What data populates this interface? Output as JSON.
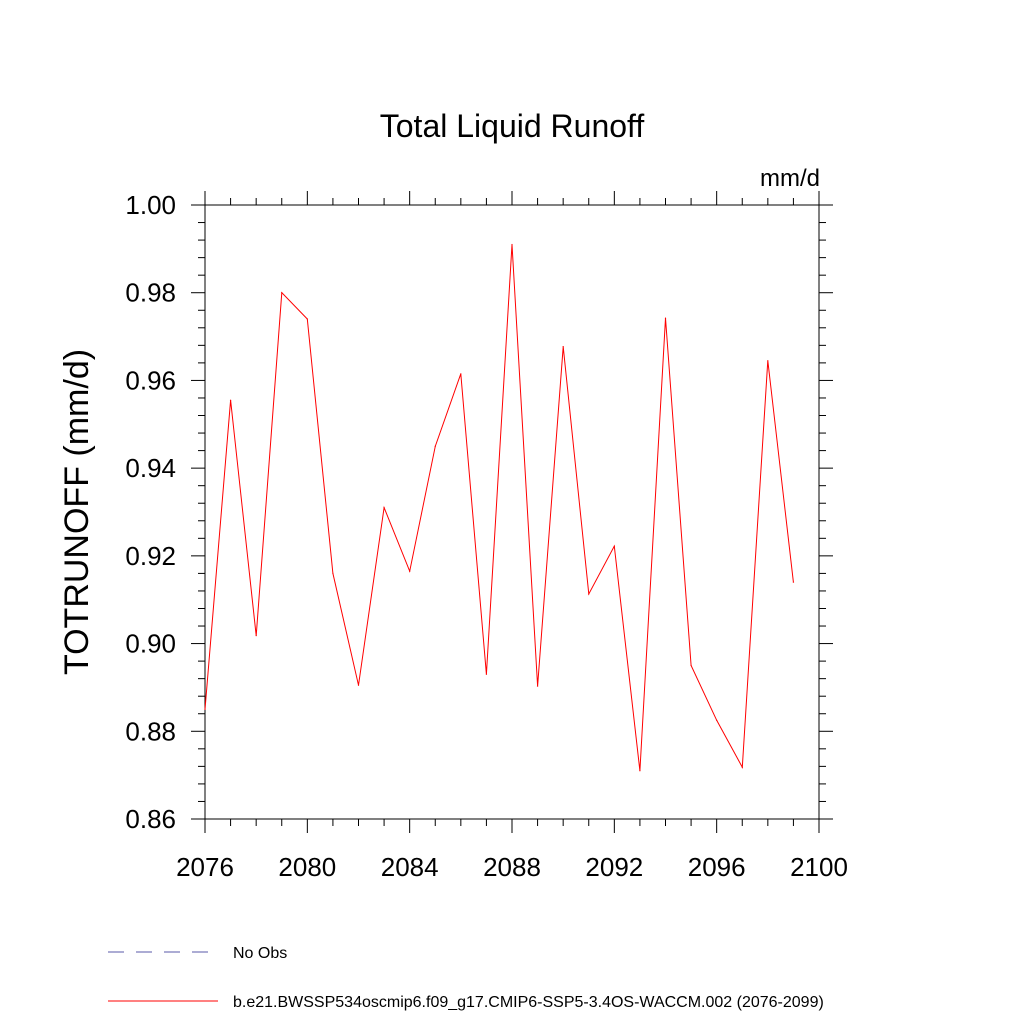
{
  "chart_data": {
    "type": "line",
    "title": "Total Liquid Runoff",
    "units_label": "mm/d",
    "ylabel": "TOTRUNOFF  (mm/d)",
    "xlabel": "",
    "xlim": [
      2076,
      2100
    ],
    "ylim": [
      0.86,
      1.0
    ],
    "x_ticks": [
      "2076",
      "2080",
      "2084",
      "2088",
      "2092",
      "2096",
      "2100"
    ],
    "y_ticks": [
      "0.86",
      "0.88",
      "0.90",
      "0.92",
      "0.94",
      "0.96",
      "0.98",
      "1.00"
    ],
    "series": [
      {
        "name": "b.e21.BWSSP534oscmip6.f09_g17.CMIP6-SSP5-3.4OS-WACCM.002 (2076-2099)",
        "color": "#ff0000",
        "style": "solid",
        "x": [
          2076,
          2077,
          2078,
          2079,
          2080,
          2081,
          2082,
          2083,
          2084,
          2085,
          2086,
          2087,
          2088,
          2089,
          2090,
          2091,
          2092,
          2093,
          2094,
          2095,
          2096,
          2097,
          2098,
          2099
        ],
        "values": [
          0.885,
          0.9555,
          0.9018,
          0.98,
          0.974,
          0.916,
          0.8905,
          0.931,
          0.9165,
          0.945,
          0.9615,
          0.893,
          0.991,
          0.8903,
          0.9677,
          0.9113,
          0.9222,
          0.871,
          0.9742,
          0.895,
          0.8825,
          0.8718,
          0.9645,
          0.914
        ]
      }
    ],
    "legend": [
      {
        "label": "No Obs",
        "color": "#5a5aa8",
        "style": "dashed"
      },
      {
        "label": "b.e21.BWSSP534oscmip6.f09_g17.CMIP6-SSP5-3.4OS-WACCM.002 (2076-2099)",
        "color": "#ff0000",
        "style": "solid"
      }
    ],
    "legend_position": "bottom-left",
    "grid": false
  }
}
